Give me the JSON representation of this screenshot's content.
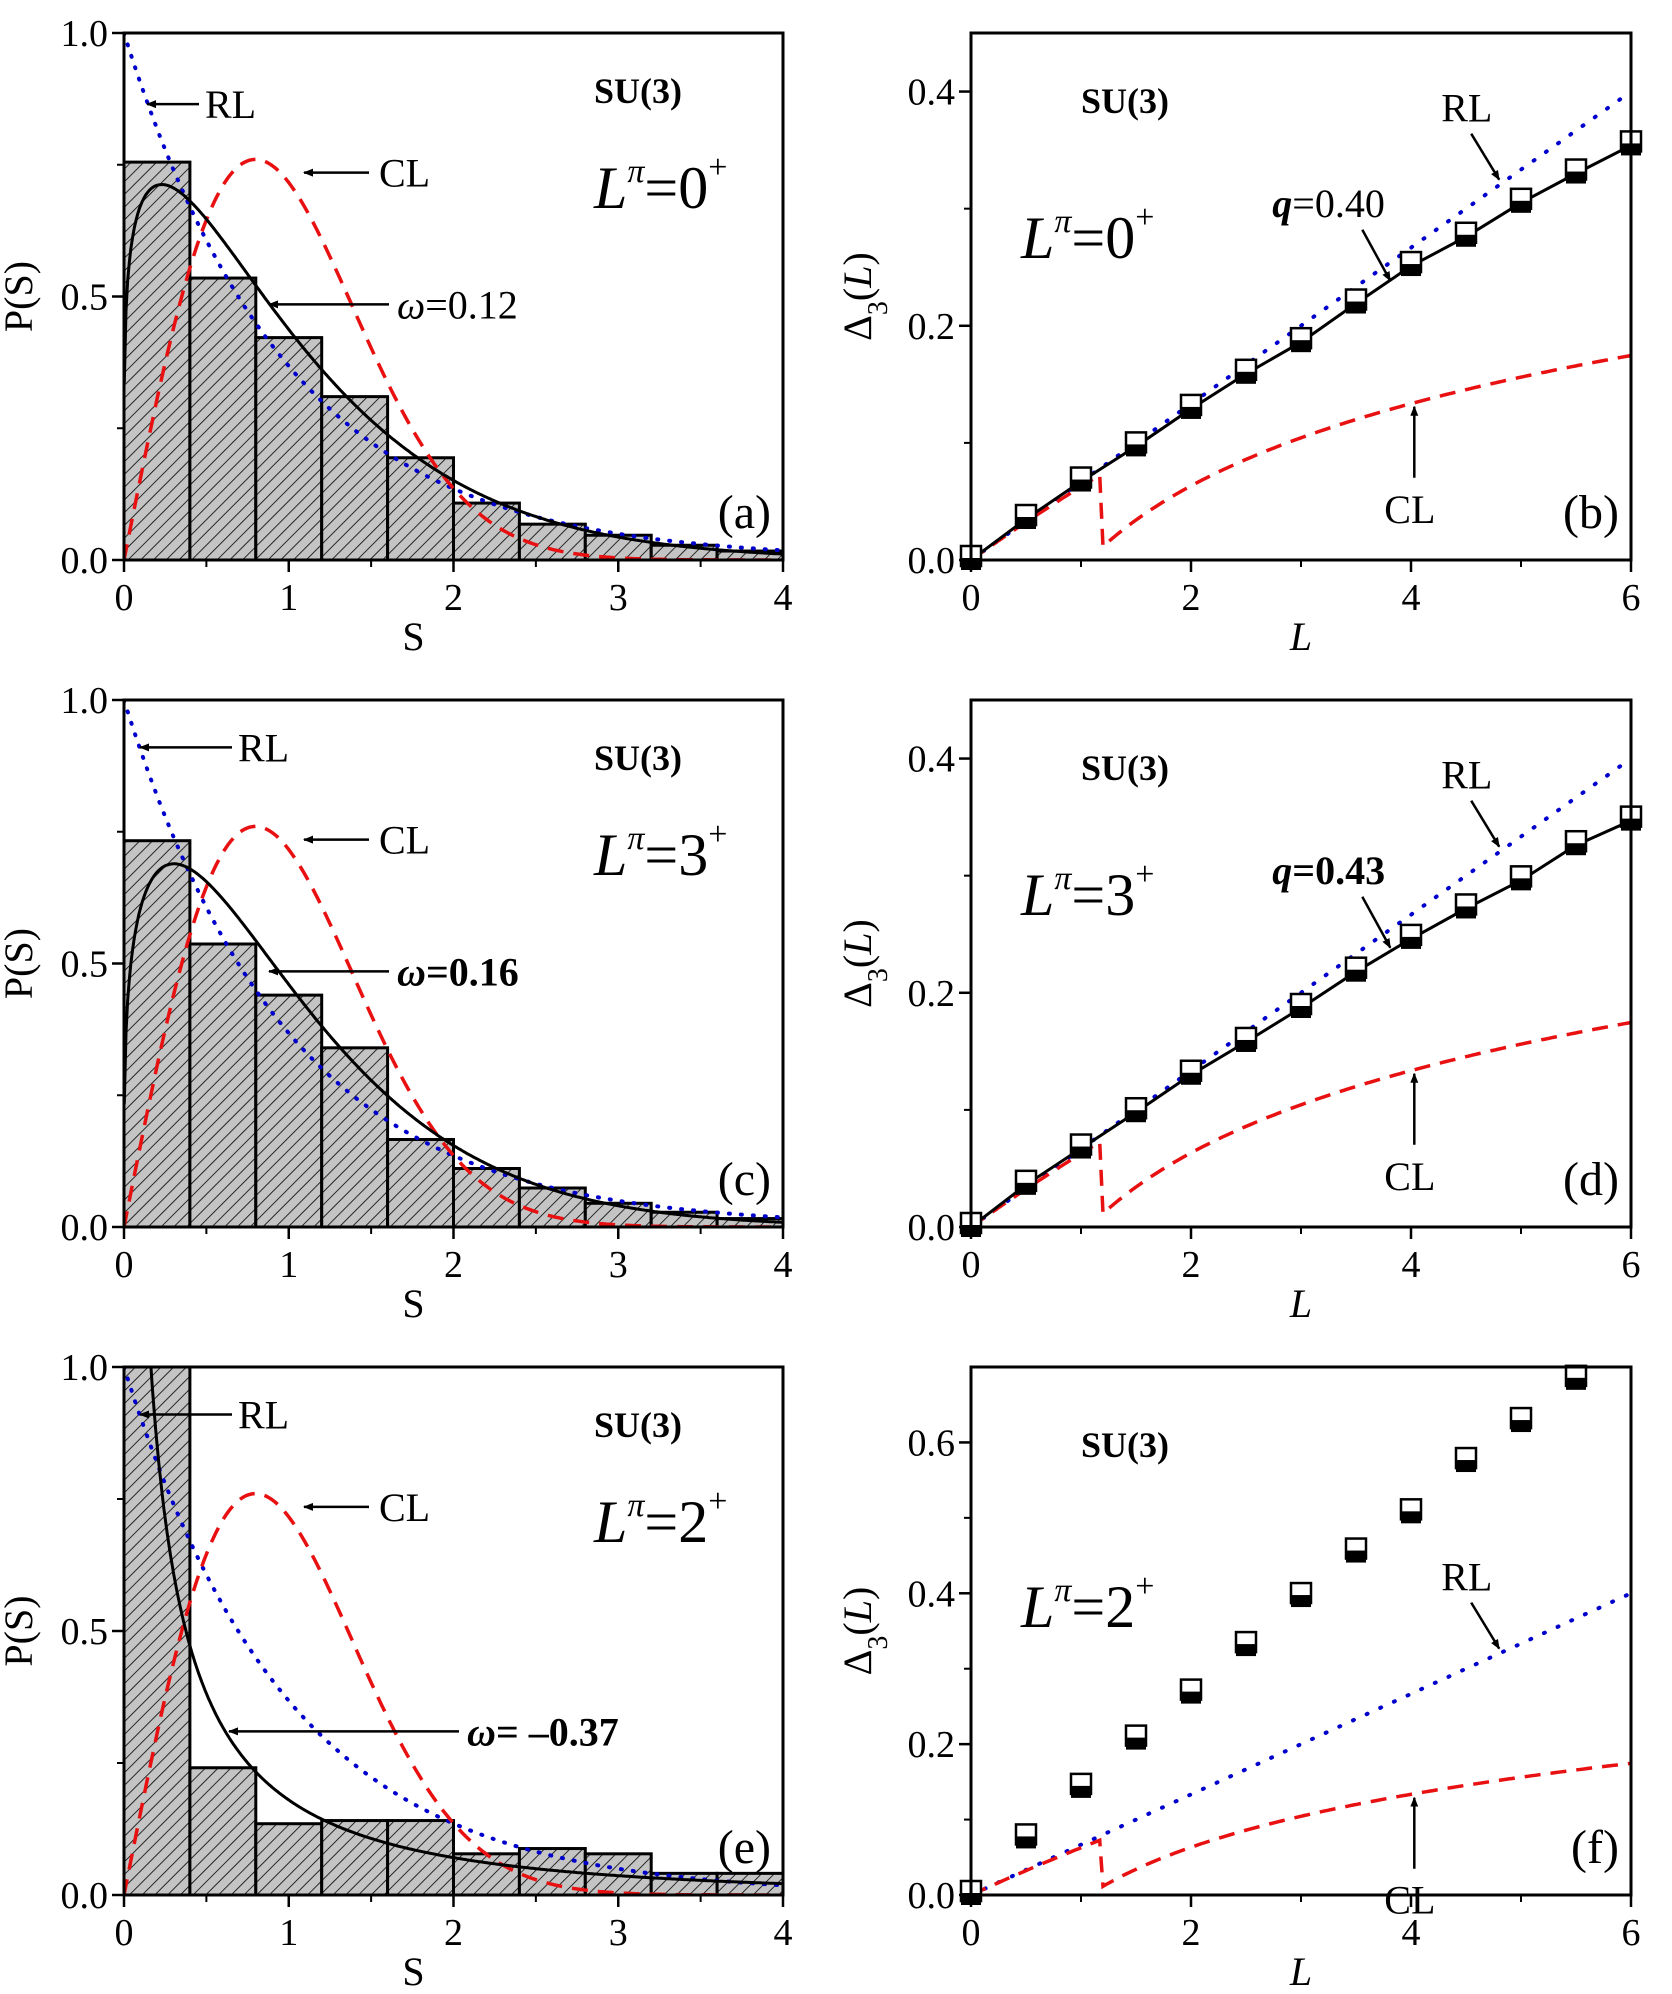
{
  "figure": {
    "description": "Nearest-neighbor spacing distributions P(S) and spectral rigidity Delta_3(L) for SU(3) limit"
  },
  "colors": {
    "rl": "#0000cc",
    "cl": "#e81010",
    "fit": "#000000",
    "bar_fill": "#c4c4c4",
    "bar_hatch": "#000000"
  },
  "chart_data": [
    {
      "id": "a",
      "type": "bar",
      "panel_label": "(a)",
      "title": "SU(3)",
      "state_label": {
        "base": "L",
        "sup": "π",
        "eq": "=0",
        "parity": "+"
      },
      "xlabel": "S",
      "ylabel": "P(S)",
      "xlim": [
        0,
        4
      ],
      "ylim": [
        0,
        1.0
      ],
      "xticks": [
        "0",
        "1",
        "2",
        "3",
        "4"
      ],
      "yticks": [
        "0.0",
        "0.5",
        "1.0"
      ],
      "bin_width": 0.4,
      "bin_starts": [
        0,
        0.4,
        0.8,
        1.2,
        1.6,
        2.0,
        2.4,
        2.8,
        3.2,
        3.6
      ],
      "values": [
        0.755,
        0.535,
        0.422,
        0.31,
        0.194,
        0.108,
        0.068,
        0.047,
        0.028,
        0.017
      ],
      "curves": {
        "RL": "Poisson",
        "CL": "Wigner GOE",
        "fit": "Brody/ABWO omega=0.12"
      },
      "omega": 0.12,
      "annotations": {
        "rl": "RL",
        "cl": "CL",
        "omega_symbol": "ω",
        "omega_text": "=0.12"
      },
      "omega_bold": false
    },
    {
      "id": "b",
      "type": "scatter",
      "panel_label": "(b)",
      "title": "SU(3)",
      "state_label": {
        "base": "L",
        "sup": "π",
        "eq": "=0",
        "parity": "+"
      },
      "xlabel": "L",
      "ylabel": "Δ3(L)",
      "ylabel_parts": {
        "delta": "Δ",
        "sub": "3",
        "arg_open": "(",
        "arg": "L",
        "arg_close": ")"
      },
      "xlim": [
        0,
        6
      ],
      "ylim": [
        0,
        0.45
      ],
      "xticks": [
        "0",
        "2",
        "4",
        "6"
      ],
      "yticks": [
        "0.0",
        "0.2",
        "0.4"
      ],
      "x": [
        0,
        0.5,
        1,
        1.5,
        2,
        2.5,
        3,
        3.5,
        4,
        4.5,
        5,
        5.5,
        6
      ],
      "y": [
        0.0,
        0.035,
        0.067,
        0.097,
        0.129,
        0.159,
        0.186,
        0.219,
        0.251,
        0.276,
        0.305,
        0.33,
        0.354
      ],
      "q": 0.4,
      "annotations": {
        "rl": "RL",
        "cl": "CL",
        "q_symbol": "q",
        "q_text": "=0.40"
      },
      "q_bold": false,
      "has_fit_line": true
    },
    {
      "id": "c",
      "type": "bar",
      "panel_label": "(c)",
      "title": "SU(3)",
      "state_label": {
        "base": "L",
        "sup": "π",
        "eq": "=3",
        "parity": "+"
      },
      "xlabel": "S",
      "ylabel": "P(S)",
      "xlim": [
        0,
        4
      ],
      "ylim": [
        0,
        1.0
      ],
      "xticks": [
        "0",
        "1",
        "2",
        "3",
        "4"
      ],
      "yticks": [
        "0.0",
        "0.5",
        "1.0"
      ],
      "bin_width": 0.4,
      "bin_starts": [
        0,
        0.4,
        0.8,
        1.2,
        1.6,
        2.0,
        2.4,
        2.8,
        3.2,
        3.6
      ],
      "values": [
        0.733,
        0.537,
        0.44,
        0.34,
        0.166,
        0.111,
        0.074,
        0.045,
        0.028,
        0.016
      ],
      "omega": 0.16,
      "annotations": {
        "rl": "RL",
        "cl": "CL",
        "omega_symbol": "ω",
        "omega_text": "=0.16"
      },
      "omega_bold": true
    },
    {
      "id": "d",
      "type": "scatter",
      "panel_label": "(d)",
      "title": "SU(3)",
      "state_label": {
        "base": "L",
        "sup": "π",
        "eq": "=3",
        "parity": "+"
      },
      "xlabel": "L",
      "ylabel": "Δ3(L)",
      "ylabel_parts": {
        "delta": "Δ",
        "sub": "3",
        "arg_open": "(",
        "arg": "L",
        "arg_close": ")"
      },
      "xlim": [
        0,
        6
      ],
      "ylim": [
        0,
        0.45
      ],
      "xticks": [
        "0",
        "2",
        "4",
        "6"
      ],
      "yticks": [
        "0.0",
        "0.2",
        "0.4"
      ],
      "x": [
        0,
        0.5,
        1,
        1.5,
        2,
        2.5,
        3,
        3.5,
        4,
        4.5,
        5,
        5.5,
        6
      ],
      "y": [
        0.0,
        0.036,
        0.067,
        0.098,
        0.13,
        0.158,
        0.187,
        0.218,
        0.246,
        0.272,
        0.296,
        0.326,
        0.347
      ],
      "q": 0.43,
      "annotations": {
        "rl": "RL",
        "cl": "CL",
        "q_symbol": "q",
        "q_text": "=0.43"
      },
      "q_bold": true,
      "has_fit_line": true
    },
    {
      "id": "e",
      "type": "bar",
      "panel_label": "(e)",
      "title": "SU(3)",
      "state_label": {
        "base": "L",
        "sup": "π",
        "eq": "=2",
        "parity": "+"
      },
      "xlabel": "S",
      "ylabel": "P(S)",
      "xlim": [
        0,
        4
      ],
      "ylim": [
        0,
        1.0
      ],
      "xticks": [
        "0",
        "1",
        "2",
        "3",
        "4"
      ],
      "yticks": [
        "0.0",
        "0.5",
        "1.0"
      ],
      "bin_width": 0.4,
      "bin_starts": [
        0,
        0.4,
        0.8,
        1.2,
        1.6,
        2.0,
        2.4,
        2.8,
        3.2,
        3.6
      ],
      "values": [
        1.05,
        0.241,
        0.135,
        0.141,
        0.141,
        0.078,
        0.088,
        0.078,
        0.041,
        0.041
      ],
      "omega": -0.37,
      "annotations": {
        "rl": "RL",
        "cl": "CL",
        "omega_symbol": "ω",
        "omega_text": "= –0.37"
      },
      "omega_bold": true
    },
    {
      "id": "f",
      "type": "scatter",
      "panel_label": "(f)",
      "title": "SU(3)",
      "state_label": {
        "base": "L",
        "sup": "π",
        "eq": "=2",
        "parity": "+"
      },
      "xlabel": "L",
      "ylabel": "Δ3(L)",
      "ylabel_parts": {
        "delta": "Δ",
        "sub": "3",
        "arg_open": "(",
        "arg": "L",
        "arg_close": ")"
      },
      "xlim": [
        0,
        6
      ],
      "ylim": [
        0,
        0.7
      ],
      "xticks": [
        "0",
        "2",
        "4",
        "6"
      ],
      "yticks": [
        "0.0",
        "0.2",
        "0.4",
        "0.6"
      ],
      "x": [
        0,
        0.5,
        1,
        1.5,
        2,
        2.5,
        3,
        3.5,
        4,
        4.5,
        5,
        5.5
      ],
      "y": [
        0.0,
        0.075,
        0.142,
        0.206,
        0.267,
        0.33,
        0.395,
        0.454,
        0.506,
        0.574,
        0.627,
        0.683
      ],
      "annotations": {
        "rl": "RL",
        "cl": "CL"
      },
      "has_fit_line": false
    }
  ]
}
